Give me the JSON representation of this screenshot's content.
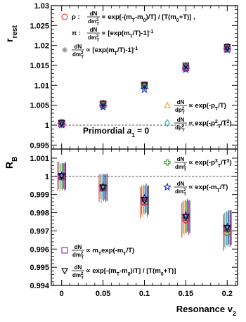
{
  "chart_data": [
    {
      "type": "scatter",
      "panel": "top",
      "ylabel_main": "r",
      "ylabel_sub": "rest",
      "xlim": [
        -0.0125,
        0.2125
      ],
      "ylim": [
        0.994,
        1.03
      ],
      "yticks": [
        "1.03",
        "1.025",
        "1.02",
        "1.015",
        "1.01",
        "1.005",
        "1",
        "0.995"
      ],
      "ytick_values": [
        1.03,
        1.025,
        1.02,
        1.015,
        1.01,
        1.005,
        1.0,
        0.995
      ],
      "reference_line": 1.0,
      "annotation_prefix": "Primordial ",
      "annotation_italic": "a",
      "annotation_sub": "1",
      "annotation_suffix": " = 0",
      "x": [
        0,
        0.05,
        0.1,
        0.15,
        0.2
      ],
      "series": [
        {
          "legend_idx": 0,
          "marker": "circle",
          "color": "#e8282a",
          "values": [
            1.0008,
            1.0055,
            1.0102,
            1.0145,
            1.0198
          ]
        },
        {
          "legend_idx": 1,
          "marker": "none",
          "color": "#000000",
          "values": []
        },
        {
          "legend_idx": 2,
          "marker": "asterisk",
          "color": "#888888",
          "values": [
            1.0005,
            1.0052,
            1.01,
            1.0148,
            1.0195
          ]
        },
        {
          "legend_idx": 3,
          "marker": "triangle-up",
          "color": "#f0a030",
          "values": [
            1.0003,
            1.005,
            1.0098,
            1.0147,
            1.0193
          ]
        },
        {
          "legend_idx": 4,
          "marker": "diamond",
          "color": "#20b0b8",
          "values": [
            1.0002,
            1.0049,
            1.0097,
            1.0146,
            1.0192
          ]
        },
        {
          "legend_idx": 5,
          "marker": "cross",
          "color": "#30a030",
          "values": [
            1.0004,
            1.0051,
            1.0099,
            1.0147,
            1.0194
          ]
        },
        {
          "legend_idx": 6,
          "marker": "star",
          "color": "#1020c0",
          "values": [
            1.0001,
            1.0046,
            1.009,
            1.014,
            1.019
          ]
        },
        {
          "legend_idx": 7,
          "marker": "square",
          "color": "#a020a0",
          "values": [
            1.0003,
            1.0053,
            1.0101,
            1.0144,
            1.0191
          ]
        },
        {
          "legend_idx": 8,
          "marker": "triangle-down",
          "color": "#000000",
          "values": [
            1.0006,
            1.0054,
            1.01,
            1.015,
            1.0196
          ]
        }
      ],
      "legend": [
        {
          "symbol": "circle",
          "color": "#e8282a",
          "pre": "ρ : ",
          "num": "dN",
          "den": "dm",
          "den_sup": "2",
          "den_sub": "T",
          "post": " ∝ exp[-(m",
          "post_sub1": "T",
          "post2": "-m",
          "post_sub2": "0",
          "post3": ")/T] / [T(m",
          "post_sub3": "0",
          "post4": "+T)] ,"
        },
        {
          "symbol": "none",
          "color": "#000000",
          "pre": "π : ",
          "num": "dN",
          "den": "dm",
          "den_sup": "2",
          "den_sub": "T",
          "post": " ∝ [exp(m",
          "post_sub1": "T",
          "post2": "/T)-1]",
          "post_sup": "-1"
        },
        {
          "symbol": "asterisk",
          "color": "#888888",
          "pre": "",
          "num": "dN",
          "den": "dm",
          "den_sup": "2",
          "den_sub": "T",
          "post": " ∝ [exp(m",
          "post_sub1": "T",
          "post2": "/T)-1]",
          "post_sup": "-1"
        },
        {
          "symbol": "triangle-up",
          "color": "#f0a030",
          "pre": "",
          "num": "dN",
          "den": "dp",
          "den_sup": "2",
          "den_sub": "T",
          "post": " ∝ exp(-p",
          "post_sub1": "T",
          "post2": "/T)"
        },
        {
          "symbol": "diamond",
          "color": "#20b0b8",
          "pre": "",
          "num": "dN",
          "den": "dp",
          "den_sup": "2",
          "den_sub": "T",
          "post": " ∝ exp(-p",
          "post_sup1": "2",
          "post_sub1": "T",
          "post2": "/T",
          "post_sup2": "2",
          "post3": ")"
        }
      ]
    },
    {
      "type": "scatter",
      "panel": "bottom",
      "ylabel_main": "R",
      "ylabel_sub": "B",
      "xlabel_main": "Resonance v",
      "xlabel_sub": "2",
      "xlim": [
        -0.0125,
        0.2125
      ],
      "ylim": [
        0.994,
        1.0015
      ],
      "xticks": [
        "0",
        "0.05",
        "0.1",
        "0.15",
        "0.2"
      ],
      "xtick_values": [
        0,
        0.05,
        0.1,
        0.15,
        0.2
      ],
      "yticks": [
        "1.001",
        "1",
        "0.999",
        "0.998",
        "0.997",
        "0.996",
        "0.995",
        "0.994"
      ],
      "ytick_values": [
        1.001,
        1.0,
        0.999,
        0.998,
        0.997,
        0.996,
        0.995,
        0.994
      ],
      "reference_line": 1.0,
      "x": [
        0,
        0.05,
        0.1,
        0.15,
        0.2
      ],
      "series": [
        {
          "marker": "circle",
          "color": "#e8282a",
          "values": [
            1.0,
            0.99935,
            0.99855,
            0.9976,
            0.9969
          ],
          "err": [
            0.0008,
            0.00075,
            0.00085,
            0.00095,
            0.001
          ]
        },
        {
          "marker": "asterisk",
          "color": "#888888",
          "values": [
            1.00005,
            0.99945,
            0.9987,
            0.99775,
            0.99705
          ],
          "err": [
            0.00075,
            0.0007,
            0.0008,
            0.0009,
            0.00095
          ]
        },
        {
          "marker": "triangle-up",
          "color": "#f0a030",
          "values": [
            0.99995,
            0.9993,
            0.9986,
            0.9977,
            0.997
          ],
          "err": [
            0.0008,
            0.0008,
            0.00085,
            0.00095,
            0.001
          ]
        },
        {
          "marker": "diamond",
          "color": "#20b0b8",
          "values": [
            1.0,
            0.9994,
            0.99875,
            0.9978,
            0.99715
          ],
          "err": [
            0.0007,
            0.0007,
            0.0008,
            0.0009,
            0.00095
          ]
        },
        {
          "marker": "cross",
          "color": "#30a030",
          "values": [
            0.99998,
            0.99938,
            0.99868,
            0.99775,
            0.9971
          ],
          "err": [
            0.00075,
            0.00075,
            0.0008,
            0.0009,
            0.00095
          ]
        },
        {
          "marker": "star",
          "color": "#1020c0",
          "values": [
            1.00002,
            0.99942,
            0.9988,
            0.99785,
            0.9972
          ],
          "err": [
            0.0007,
            0.0007,
            0.0008,
            0.0009,
            0.00095
          ]
        },
        {
          "marker": "square",
          "color": "#a020a0",
          "values": [
            0.99997,
            0.99935,
            0.99862,
            0.99772,
            0.99712
          ],
          "err": [
            0.00075,
            0.00075,
            0.00085,
            0.00095,
            0.001
          ]
        },
        {
          "marker": "triangle-down",
          "color": "#000000",
          "values": [
            1.00003,
            0.9994,
            0.9987,
            0.99778,
            0.99718
          ],
          "err": [
            0.00075,
            0.00075,
            0.0008,
            0.0009,
            0.00095
          ]
        }
      ],
      "legend": [
        {
          "symbol": "cross",
          "color": "#30a030",
          "pre": "",
          "num": "dN",
          "den": "dm",
          "den_sup": "2",
          "den_sub": "T",
          "post": " ∝ exp(-p",
          "post_sup1": "3",
          "post_sub1": "T",
          "post2": "/T",
          "post_sup2": "3",
          "post3": ")"
        },
        {
          "symbol": "star",
          "color": "#1020c0",
          "pre": "",
          "num": "dN",
          "den": "dm",
          "den_sup": "2",
          "den_sub": "T",
          "post": " ∝ exp(-m",
          "post_sub1": "T",
          "post2": "/T)"
        },
        {
          "symbol": "square",
          "color": "#a020a0",
          "pre": "",
          "num": "dN",
          "den": "dm",
          "den_sup": "2",
          "den_sub": "T",
          "post": " ∝ m",
          "post_sub1": "T",
          "post2": "exp(-m",
          "post_sub2": "T",
          "post3": "/T)"
        },
        {
          "symbol": "triangle-down",
          "color": "#000000",
          "pre": "",
          "num": "dN",
          "den": "dm",
          "den_sup": "2",
          "den_sub": "T",
          "post": " ∝ exp[-(m",
          "post_sub1": "T",
          "post2": "-m",
          "post_sub2": "0",
          "post3": ")/T] / [T(m",
          "post_sub3": "0",
          "post4": "+T)]"
        }
      ]
    }
  ]
}
